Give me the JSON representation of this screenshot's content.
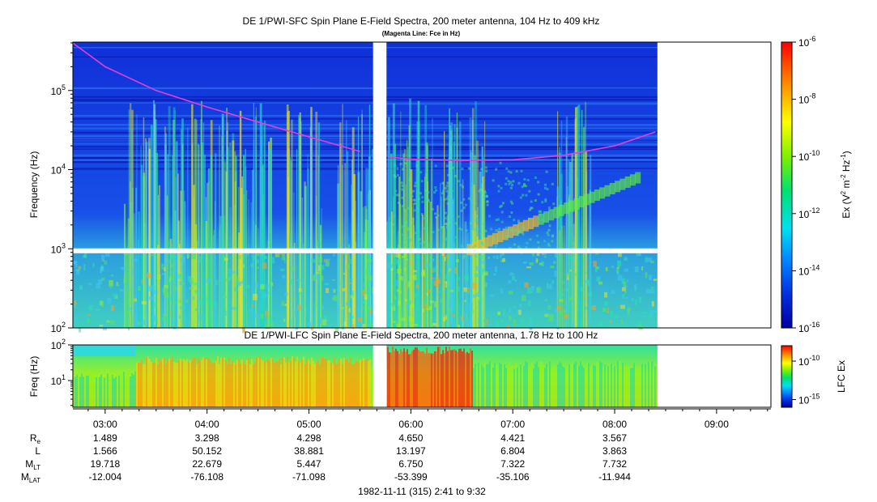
{
  "chart_data": [
    {
      "type": "heatmap",
      "title": "DE 1/PWI-SFC  Spin Plane E-Field Spectra, 200 meter antenna, 104 Hz to 409 kHz",
      "subtitle": "(Magenta Line: Fce in Hz)",
      "ylabel": "Frequency (Hz)",
      "yscale": "log",
      "ylim": [
        100,
        409000
      ],
      "y_ticks": [
        100,
        1000,
        10000,
        100000
      ],
      "y_tick_labels": [
        {
          "base": "10",
          "exp": "2"
        },
        {
          "base": "10",
          "exp": "3"
        },
        {
          "base": "10",
          "exp": "4"
        },
        {
          "base": "10",
          "exp": "5"
        }
      ],
      "colorbar": {
        "label": "Ex (V² m⁻² Hz⁻¹)",
        "label_parts": {
          "a": "Ex (V",
          "b": "2",
          "c": " m",
          "d": "-2",
          "e": " Hz",
          "f": "-1",
          "g": ")"
        },
        "scale": "log",
        "range": [
          1e-16,
          1e-06
        ],
        "ticks": [
          {
            "value": 1e-06,
            "base": "10",
            "exp": "-6"
          },
          {
            "value": 1e-08,
            "base": "10",
            "exp": "-8"
          },
          {
            "value": 1e-10,
            "base": "10",
            "exp": "-10"
          },
          {
            "value": 1e-12,
            "base": "10",
            "exp": "-12"
          },
          {
            "value": 1e-14,
            "base": "10",
            "exp": "-14"
          },
          {
            "value": 1e-16,
            "base": "10",
            "exp": "-16"
          }
        ]
      },
      "data_gap_hours": [
        5.63,
        5.76
      ],
      "data_end_hour": 8.42,
      "fce_line": {
        "color": "#e040e0",
        "x_hours": [
          2.68,
          3.0,
          3.5,
          4.0,
          4.5,
          5.0,
          5.5,
          5.78,
          6.0,
          6.5,
          7.0,
          7.5,
          8.0,
          8.4
        ],
        "y_hz": [
          400000,
          200000,
          100000,
          62000,
          40000,
          26000,
          17000,
          14500,
          13600,
          13000,
          13300,
          15200,
          20000,
          30000
        ]
      }
    },
    {
      "type": "heatmap",
      "title": "DE 1/PWI-LFC  Spin Plane E-Field Spectra, 200 meter antenna, 1.78 Hz to 100 Hz",
      "ylabel": "Freq (Hz)",
      "yscale": "log",
      "ylim": [
        1.78,
        100
      ],
      "y_ticks": [
        10,
        100
      ],
      "y_tick_labels": [
        {
          "base": "10",
          "exp": "1"
        },
        {
          "base": "10",
          "exp": "2"
        }
      ],
      "colorbar": {
        "label": "LFC Ex",
        "scale": "log",
        "range": [
          1e-16,
          1e-08
        ],
        "ticks": [
          {
            "value": 1e-10,
            "base": "10",
            "exp": "-10"
          },
          {
            "value": 1e-15,
            "base": "10",
            "exp": "-15"
          }
        ]
      }
    }
  ],
  "time_axis": {
    "range_hours": [
      2.6833,
      9.5333
    ],
    "ticks": [
      {
        "hour": 3,
        "label": "03:00"
      },
      {
        "hour": 4,
        "label": "04:00"
      },
      {
        "hour": 5,
        "label": "05:00"
      },
      {
        "hour": 6,
        "label": "06:00"
      },
      {
        "hour": 7,
        "label": "07:00"
      },
      {
        "hour": 8,
        "label": "08:00"
      },
      {
        "hour": 9,
        "label": "09:00"
      }
    ],
    "date_label": "1982-11-11 (315) 2:41 to 9:32"
  },
  "ephemeris": {
    "rows": [
      {
        "name": "R",
        "sub": "e",
        "values": [
          "1.489",
          "3.298",
          "4.298",
          "4.650",
          "4.421",
          "3.567"
        ]
      },
      {
        "name": "L",
        "sub": "",
        "values": [
          "1.566",
          "50.152",
          "38.881",
          "13.197",
          "6.804",
          "3.863"
        ]
      },
      {
        "name": "M",
        "sub": "LT",
        "values": [
          "19.718",
          "22.679",
          "5.447",
          "6.750",
          "7.322",
          "7.732"
        ]
      },
      {
        "name": "M",
        "sub": "LAT",
        "values": [
          "-12.004",
          "-76.108",
          "-71.098",
          "-53.399",
          "-35.106",
          "-11.944"
        ]
      }
    ]
  }
}
